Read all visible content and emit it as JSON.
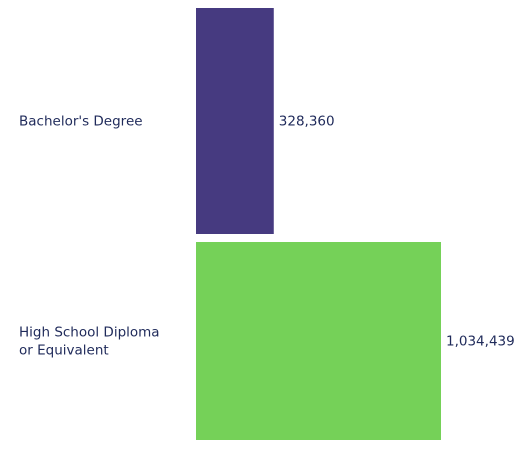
{
  "chart_data": {
    "type": "bar",
    "orientation": "horizontal",
    "categories": [
      "Bachelor's Degree",
      "High School Diploma or Equivalent"
    ],
    "category_lines": [
      [
        "Bachelor's Degree"
      ],
      [
        "High School Diploma",
        "or Equivalent"
      ]
    ],
    "values": [
      328360,
      1034439
    ],
    "value_labels": [
      "328,360",
      "1,034,439"
    ],
    "colors": [
      "#463a80",
      "#75d158"
    ],
    "label_color": "#1f2a5a",
    "value_axis_min": 0,
    "grid": false,
    "legend": "none",
    "title": "",
    "xlabel": "",
    "ylabel": ""
  }
}
